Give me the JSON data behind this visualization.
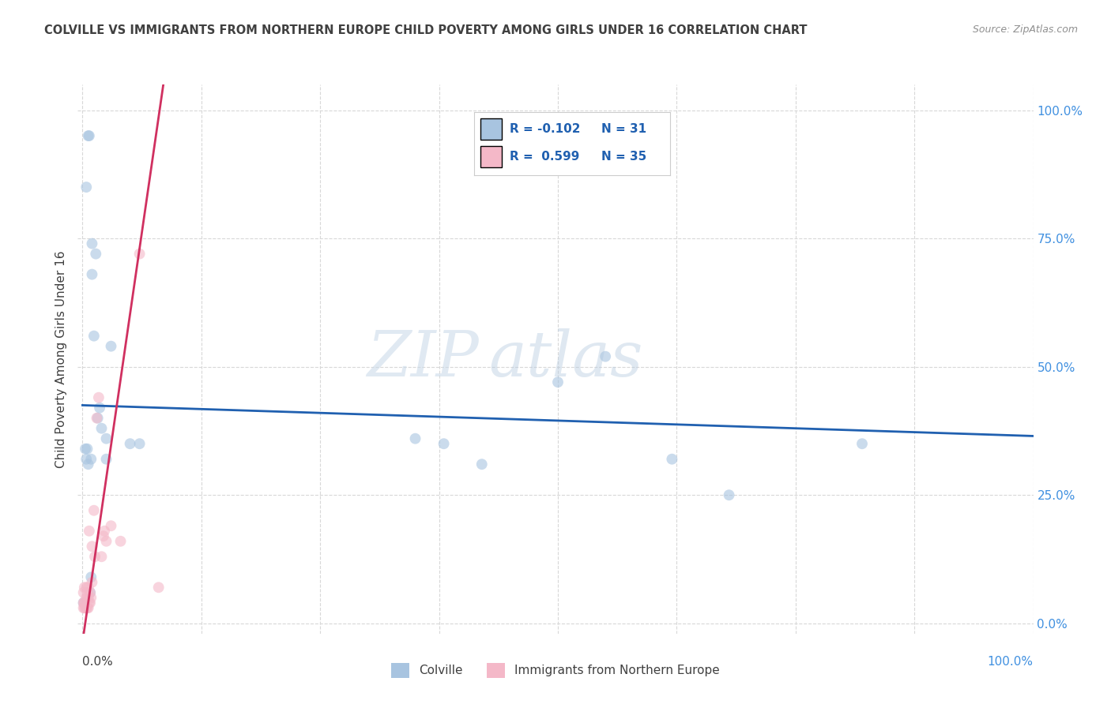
{
  "title": "COLVILLE VS IMMIGRANTS FROM NORTHERN EUROPE CHILD POVERTY AMONG GIRLS UNDER 16 CORRELATION CHART",
  "source": "Source: ZipAtlas.com",
  "ylabel": "Child Poverty Among Girls Under 16",
  "watermark_zip": "ZIP",
  "watermark_atlas": "atlas",
  "legend_blue_R": "-0.102",
  "legend_blue_N": "31",
  "legend_pink_R": "0.599",
  "legend_pink_N": "35",
  "legend_blue_label": "Colville",
  "legend_pink_label": "Immigrants from Northern Europe",
  "blue_scatter_x": [
    0.001,
    0.003,
    0.004,
    0.004,
    0.005,
    0.006,
    0.006,
    0.007,
    0.008,
    0.009,
    0.009,
    0.01,
    0.01,
    0.012,
    0.014,
    0.016,
    0.018,
    0.02,
    0.025,
    0.025,
    0.03,
    0.05,
    0.06,
    0.35,
    0.38,
    0.42,
    0.5,
    0.55,
    0.62,
    0.68,
    0.82
  ],
  "blue_scatter_y": [
    0.04,
    0.34,
    0.32,
    0.85,
    0.34,
    0.31,
    0.95,
    0.95,
    0.06,
    0.09,
    0.32,
    0.68,
    0.74,
    0.56,
    0.72,
    0.4,
    0.42,
    0.38,
    0.32,
    0.36,
    0.54,
    0.35,
    0.35,
    0.36,
    0.35,
    0.31,
    0.47,
    0.52,
    0.32,
    0.25,
    0.35
  ],
  "pink_scatter_x": [
    0.001,
    0.001,
    0.001,
    0.002,
    0.002,
    0.002,
    0.003,
    0.003,
    0.004,
    0.004,
    0.004,
    0.005,
    0.005,
    0.006,
    0.006,
    0.006,
    0.007,
    0.007,
    0.008,
    0.008,
    0.009,
    0.01,
    0.01,
    0.012,
    0.013,
    0.015,
    0.017,
    0.02,
    0.022,
    0.023,
    0.025,
    0.03,
    0.04,
    0.06,
    0.08
  ],
  "pink_scatter_y": [
    0.03,
    0.04,
    0.06,
    0.03,
    0.04,
    0.07,
    0.03,
    0.04,
    0.03,
    0.05,
    0.07,
    0.03,
    0.06,
    0.03,
    0.05,
    0.07,
    0.04,
    0.18,
    0.04,
    0.06,
    0.05,
    0.08,
    0.15,
    0.22,
    0.13,
    0.4,
    0.44,
    0.13,
    0.17,
    0.18,
    0.16,
    0.19,
    0.16,
    0.72,
    0.07
  ],
  "blue_color": "#a8c4e0",
  "pink_color": "#f4b8c8",
  "blue_line_color": "#2060b0",
  "pink_line_color": "#d03060",
  "title_color": "#404040",
  "source_color": "#909090",
  "axis_label_color": "#404040",
  "right_axis_color": "#4090e0",
  "grid_color": "#d8d8d8",
  "watermark_color": "#ccd8e8",
  "marker_size": 100,
  "marker_alpha": 0.6,
  "line_width": 2.0,
  "xlim": [
    -0.005,
    1.0
  ],
  "ylim": [
    -0.02,
    1.05
  ],
  "ytick_positions": [
    0.0,
    0.25,
    0.5,
    0.75,
    1.0
  ],
  "ytick_labels_right": [
    "0.0%",
    "25.0%",
    "50.0%",
    "75.0%",
    "100.0%"
  ],
  "xtick_positions": [
    0.0,
    0.125,
    0.25,
    0.375,
    0.5,
    0.625,
    0.75,
    0.875,
    1.0
  ],
  "background_color": "#ffffff"
}
